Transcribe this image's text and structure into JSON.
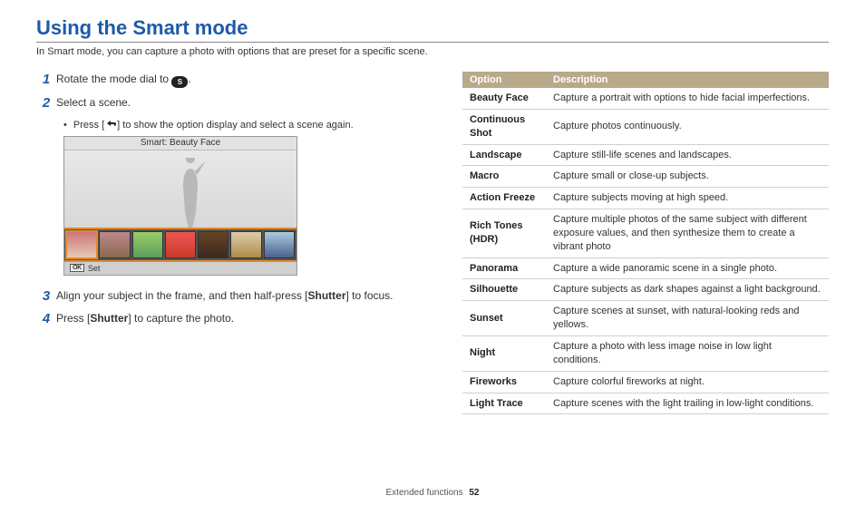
{
  "title": "Using the Smart mode",
  "subtitle": "In Smart mode, you can capture a photo with options that are preset for a specific scene.",
  "colors": {
    "title": "#1e5aa8",
    "table_header_bg": "#b9a98b",
    "thumb_highlight": "#e08a2a"
  },
  "steps": {
    "s1": {
      "num": "1",
      "text_a": "Rotate the mode dial to ",
      "icon_letter": "S",
      "text_b": "."
    },
    "s2": {
      "num": "2",
      "text": "Select a scene."
    },
    "s2_bullet": {
      "pre": "Press [",
      "post": "] to show the option display and select a scene again."
    },
    "s3": {
      "num": "3",
      "text_a": "Align your subject in the frame, and then half-press [",
      "bold": "Shutter",
      "text_b": "] to focus."
    },
    "s4": {
      "num": "4",
      "text_a": "Press [",
      "bold": "Shutter",
      "text_b": "] to capture the photo."
    }
  },
  "lcd": {
    "header": "Smart: Beauty Face",
    "footer_btn": "OK",
    "footer_label": "Set",
    "thumbs": [
      {
        "bg": "#e7c9b7",
        "selected": true,
        "accent": "#c77"
      },
      {
        "bg": "#8a6a52",
        "selected": false,
        "accent": "#b88"
      },
      {
        "bg": "#5d9e5d",
        "selected": false,
        "accent": "#9c6"
      },
      {
        "bg": "#c93b2a",
        "selected": false,
        "accent": "#e55"
      },
      {
        "bg": "#3a2a20",
        "selected": false,
        "accent": "#642"
      },
      {
        "bg": "#b08a4a",
        "selected": false,
        "accent": "#dca"
      },
      {
        "bg": "#4a6090",
        "selected": false,
        "accent": "#acd"
      }
    ]
  },
  "table": {
    "head_option": "Option",
    "head_desc": "Description",
    "rows": [
      {
        "opt": "Beauty Face",
        "desc": "Capture a portrait with options to hide facial imperfections."
      },
      {
        "opt": "Continuous Shot",
        "desc": "Capture photos continuously."
      },
      {
        "opt": "Landscape",
        "desc": "Capture still-life scenes and landscapes."
      },
      {
        "opt": "Macro",
        "desc": "Capture small or close-up subjects."
      },
      {
        "opt": "Action Freeze",
        "desc": "Capture subjects moving at high speed."
      },
      {
        "opt": "Rich Tones (HDR)",
        "desc": "Capture multiple photos of the same subject with different exposure values, and then synthesize them to create a vibrant photo"
      },
      {
        "opt": "Panorama",
        "desc": "Capture a wide panoramic scene in a single photo."
      },
      {
        "opt": "Silhouette",
        "desc": "Capture subjects as dark shapes against a light background."
      },
      {
        "opt": "Sunset",
        "desc": "Capture scenes at sunset, with natural-looking reds and yellows."
      },
      {
        "opt": "Night",
        "desc": "Capture a photo with less image noise in low light conditions."
      },
      {
        "opt": "Fireworks",
        "desc": "Capture colorful fireworks at night."
      },
      {
        "opt": "Light Trace",
        "desc": "Capture scenes with the light trailing in low-light conditions."
      }
    ]
  },
  "footer": {
    "section": "Extended functions",
    "page": "52"
  }
}
